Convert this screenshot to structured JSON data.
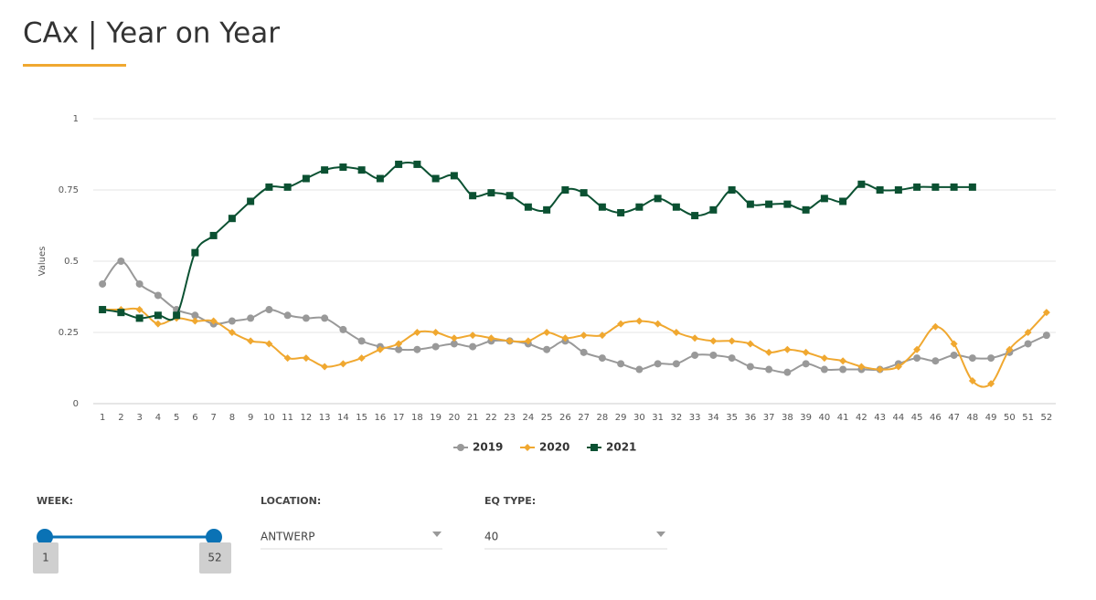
{
  "chart_data": {
    "type": "line",
    "title": "CAx | Year on Year",
    "y_label": "Values",
    "categories": [
      1,
      2,
      3,
      4,
      5,
      6,
      7,
      8,
      9,
      10,
      11,
      12,
      13,
      14,
      15,
      16,
      17,
      18,
      19,
      20,
      21,
      22,
      23,
      24,
      25,
      26,
      27,
      28,
      29,
      30,
      31,
      32,
      33,
      34,
      35,
      36,
      37,
      38,
      39,
      40,
      41,
      42,
      43,
      44,
      45,
      46,
      47,
      48,
      49,
      50,
      51,
      52
    ],
    "ylim": [
      0,
      1
    ],
    "yticks": [
      0,
      0.25,
      0.5,
      0.75,
      1
    ],
    "grid": true,
    "legend": "bottom",
    "smooth": true,
    "series": [
      {
        "name": "2019",
        "color": "#999999",
        "marker": "circle",
        "values": [
          0.42,
          0.5,
          0.42,
          0.38,
          0.33,
          0.31,
          0.28,
          0.29,
          0.3,
          0.33,
          0.31,
          0.3,
          0.3,
          0.26,
          0.22,
          0.2,
          0.19,
          0.19,
          0.2,
          0.21,
          0.2,
          0.22,
          0.22,
          0.21,
          0.19,
          0.22,
          0.18,
          0.16,
          0.14,
          0.12,
          0.14,
          0.14,
          0.17,
          0.17,
          0.16,
          0.13,
          0.12,
          0.11,
          0.14,
          0.12,
          0.12,
          0.12,
          0.12,
          0.14,
          0.16,
          0.15,
          0.17,
          0.16,
          0.16,
          0.18,
          0.21,
          0.24
        ]
      },
      {
        "name": "2020",
        "color": "#f0a830",
        "marker": "diamond",
        "values": [
          0.33,
          0.33,
          0.33,
          0.28,
          0.3,
          0.29,
          0.29,
          0.25,
          0.22,
          0.21,
          0.16,
          0.16,
          0.13,
          0.14,
          0.16,
          0.19,
          0.21,
          0.25,
          0.25,
          0.23,
          0.24,
          0.23,
          0.22,
          0.22,
          0.25,
          0.23,
          0.24,
          0.24,
          0.28,
          0.29,
          0.28,
          0.25,
          0.23,
          0.22,
          0.22,
          0.21,
          0.18,
          0.19,
          0.18,
          0.16,
          0.15,
          0.13,
          0.12,
          0.13,
          0.19,
          0.27,
          0.21,
          0.08,
          0.07,
          0.19,
          0.25,
          0.32
        ]
      },
      {
        "name": "2021",
        "color": "#0b5132",
        "marker": "square",
        "values": [
          0.33,
          0.32,
          0.3,
          0.31,
          0.31,
          0.53,
          0.59,
          0.65,
          0.71,
          0.76,
          0.76,
          0.79,
          0.82,
          0.83,
          0.82,
          0.79,
          0.84,
          0.84,
          0.79,
          0.8,
          0.73,
          0.74,
          0.73,
          0.69,
          0.68,
          0.75,
          0.74,
          0.69,
          0.67,
          0.69,
          0.72,
          0.69,
          0.66,
          0.68,
          0.75,
          0.7,
          0.7,
          0.7,
          0.68,
          0.72,
          0.71,
          0.77,
          0.75,
          0.75,
          0.76,
          0.76,
          0.76,
          0.76,
          null,
          null,
          null,
          null
        ]
      }
    ]
  },
  "filters": {
    "week": {
      "label": "WEEK:",
      "min": 1,
      "max": 52
    },
    "location": {
      "label": "LOCATION:",
      "value": "ANTWERP"
    },
    "eq_type": {
      "label": "EQ TYPE:",
      "value": "40"
    }
  }
}
